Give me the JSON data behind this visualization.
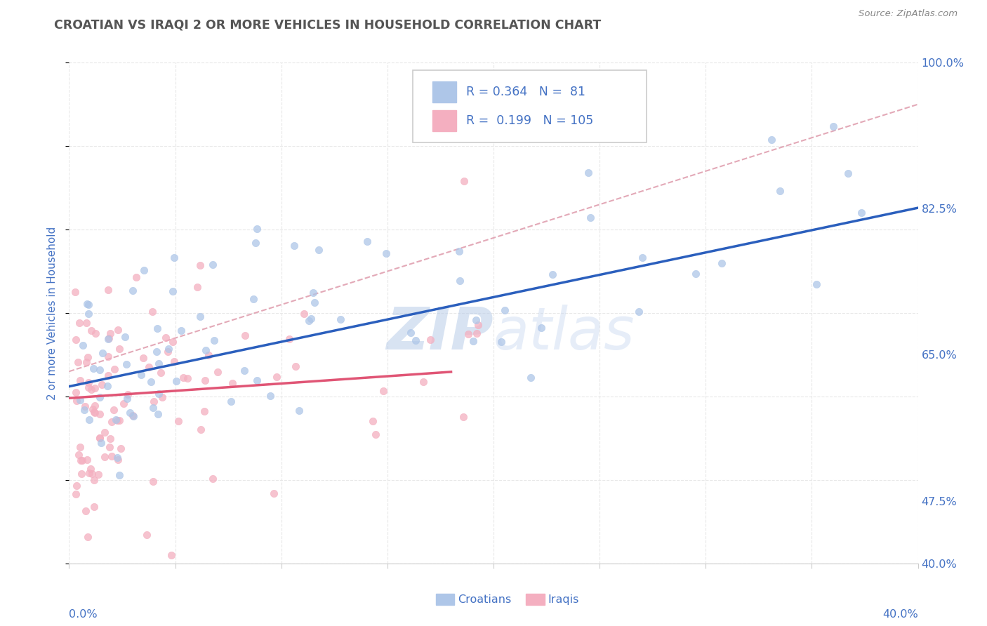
{
  "title": "CROATIAN VS IRAQI 2 OR MORE VEHICLES IN HOUSEHOLD CORRELATION CHART",
  "source": "Source: ZipAtlas.com",
  "ylabel": "2 or more Vehicles in Household",
  "ylabel_right_ticks": [
    "100.0%",
    "82.5%",
    "65.0%",
    "47.5%",
    "40.0%"
  ],
  "ylabel_right_vals": [
    1.0,
    0.825,
    0.65,
    0.475,
    0.4
  ],
  "xmin": 0.0,
  "xmax": 0.4,
  "ymin": 0.4,
  "ymax": 1.0,
  "watermark_zip": "ZIP",
  "watermark_atlas": "atlas",
  "legend_r1": "0.364",
  "legend_n1": "81",
  "legend_r2": "0.199",
  "legend_n2": "105",
  "croatian_color": "#aec6e8",
  "iraqi_color": "#f4afc0",
  "trendline_croatian_color": "#2b5fbd",
  "trendline_iraqi_color": "#e05575",
  "trendline_dashed_color": "#e0a0b0",
  "title_color": "#555555",
  "source_color": "#888888",
  "axis_label_color": "#4472c4",
  "legend_text_color": "#4472c4",
  "grid_color": "#e8e8e8"
}
